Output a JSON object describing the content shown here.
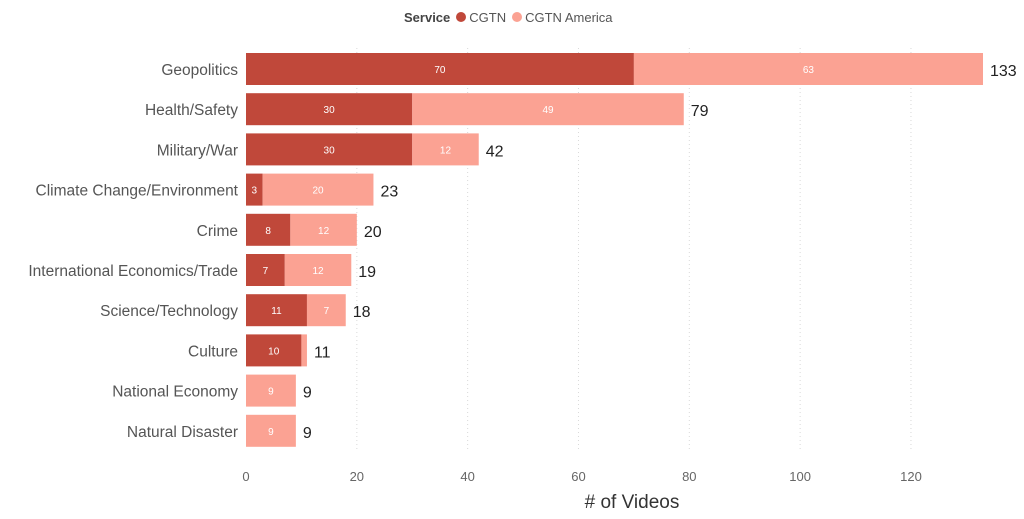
{
  "chart_data": {
    "type": "bar",
    "orientation": "horizontal",
    "stacked": true,
    "legend": {
      "title": "Service",
      "position": "top",
      "items": [
        {
          "name": "CGTN",
          "color": "#c0483a"
        },
        {
          "name": "CGTN America",
          "color": "#fba293"
        }
      ]
    },
    "categories": [
      "Geopolitics",
      "Health/Safety",
      "Military/War",
      "Climate Change/Environment",
      "Crime",
      "International Economics/Trade",
      "Science/Technology",
      "Culture",
      "National Economy",
      "Natural Disaster"
    ],
    "series": [
      {
        "name": "CGTN",
        "color": "#c0483a",
        "values": [
          70,
          30,
          30,
          3,
          8,
          7,
          11,
          10,
          0,
          0
        ],
        "labels": [
          "70",
          "30",
          "30",
          "3",
          "8",
          "7",
          "11",
          "10",
          "",
          ""
        ]
      },
      {
        "name": "CGTN America",
        "color": "#fba293",
        "values": [
          63,
          49,
          12,
          20,
          12,
          12,
          7,
          1,
          9,
          9
        ],
        "labels": [
          "63",
          "49",
          "12",
          "20",
          "12",
          "12",
          "7",
          "",
          "9",
          "9"
        ]
      }
    ],
    "totals": [
      "133",
      "79",
      "42",
      "23",
      "20",
      "19",
      "18",
      "11",
      "9",
      "9"
    ],
    "xlabel": "# of Videos",
    "ylabel": "",
    "xlim": [
      0,
      133
    ],
    "xticks": [
      0,
      20,
      40,
      60,
      80,
      100,
      120
    ],
    "xtick_labels": [
      "0",
      "20",
      "40",
      "60",
      "80",
      "100",
      "120"
    ],
    "grid": true
  }
}
